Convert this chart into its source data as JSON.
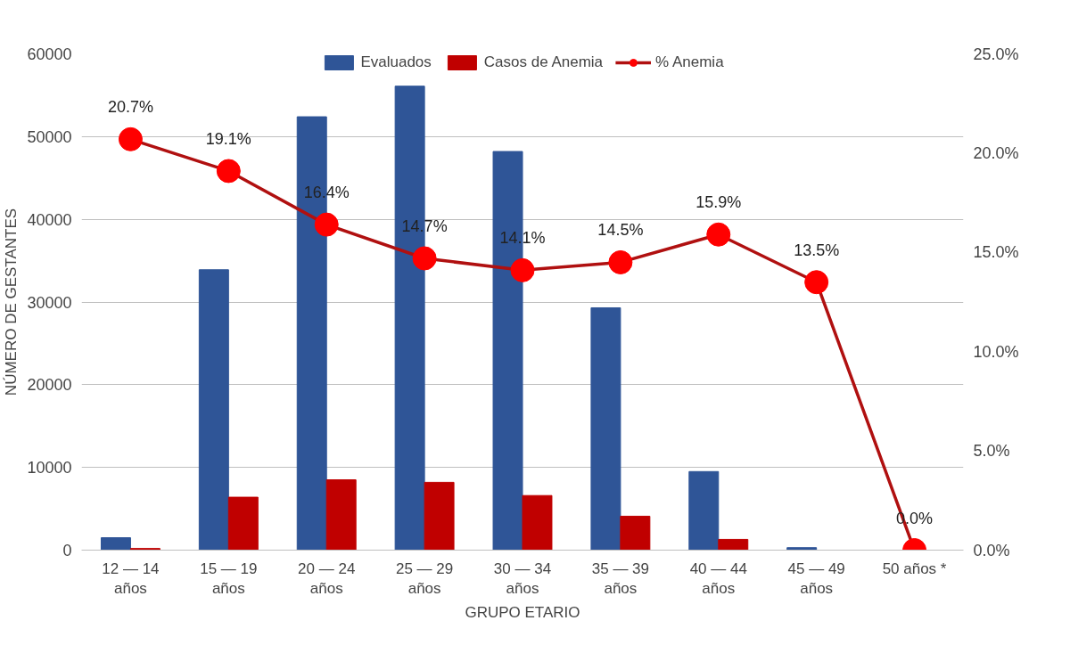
{
  "chart_data": {
    "type": "bar",
    "xlabel": "GRUPO ETARIO",
    "ylabel": "NÚMERO DE GESTANTES",
    "categories": [
      "12 — 14\naños",
      "15 — 19\naños",
      "20 — 24\naños",
      "25 — 29\naños",
      "30 — 34\naños",
      "35 — 39\naños",
      "40 — 44\naños",
      "45 — 49\naños",
      "50 años *"
    ],
    "series": [
      {
        "name": "Evaluados",
        "color": "#2f5597",
        "values": [
          1500,
          33900,
          52400,
          56100,
          48200,
          29300,
          9500,
          300,
          0
        ]
      },
      {
        "name": "Casos de Anemia",
        "color": "#c00000",
        "values": [
          200,
          6400,
          8500,
          8200,
          6600,
          4100,
          1300,
          0,
          0
        ]
      },
      {
        "name": "% Anemia",
        "type": "line",
        "axis": "y2",
        "color": "#ff0000",
        "marker": "circle",
        "values": [
          20.7,
          19.1,
          16.4,
          14.7,
          14.1,
          14.5,
          15.9,
          13.5,
          0.0
        ],
        "value_labels": [
          "20.7%",
          "19.1%",
          "16.4%",
          "14.7%",
          "14.1%",
          "14.5%",
          "15.9%",
          "13.5%",
          "0.0%"
        ]
      }
    ],
    "ylim": [
      0,
      60000
    ],
    "yticks": [
      0,
      10000,
      20000,
      30000,
      40000,
      50000,
      60000
    ],
    "y2lim": [
      0,
      25
    ],
    "y2ticks": [
      {
        "value": 0,
        "label": "0.0%"
      },
      {
        "value": 5,
        "label": "5.0%"
      },
      {
        "value": 10,
        "label": "10.0%"
      },
      {
        "value": 15,
        "label": "15.0%"
      },
      {
        "value": 20,
        "label": "20.0%"
      },
      {
        "value": 25,
        "label": "25.0%"
      }
    ],
    "grid": "y",
    "legend": "top"
  }
}
